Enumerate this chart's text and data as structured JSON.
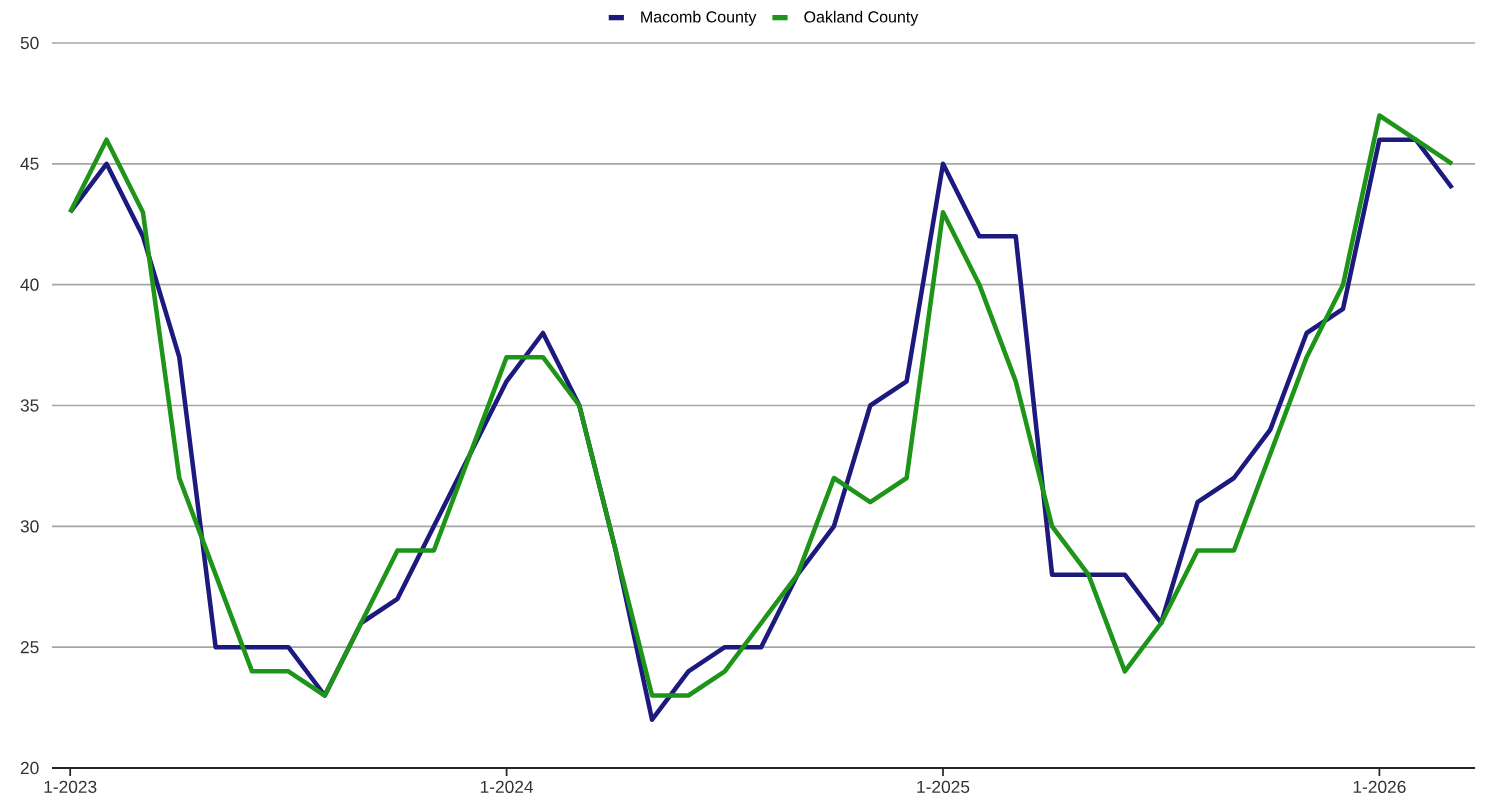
{
  "chart_data": {
    "type": "line",
    "categories": [
      "1-2023",
      null,
      null,
      null,
      null,
      null,
      null,
      null,
      null,
      null,
      null,
      null,
      "1-2024",
      null,
      null,
      null,
      null,
      null,
      null,
      null,
      null,
      null,
      null,
      null,
      "1-2025",
      null,
      null,
      null,
      null,
      null,
      null,
      null,
      null,
      null,
      null,
      null,
      "1-2026",
      null,
      null
    ],
    "series": [
      {
        "name": "Macomb County",
        "color": "#1c1a7e",
        "values": [
          43,
          45,
          42,
          37,
          25,
          25,
          25,
          23,
          26,
          27,
          30,
          33,
          36,
          38,
          35,
          29,
          22,
          24,
          25,
          25,
          28,
          30,
          35,
          36,
          45,
          42,
          42,
          28,
          28,
          28,
          26,
          31,
          32,
          34,
          38,
          39,
          46,
          46,
          44
        ]
      },
      {
        "name": "Oakland County",
        "color": "#1e9418",
        "values": [
          43,
          46,
          43,
          32,
          28,
          24,
          24,
          23,
          26,
          29,
          29,
          33,
          37,
          37,
          35,
          29,
          23,
          23,
          24,
          26,
          28,
          32,
          31,
          32,
          43,
          40,
          36,
          30,
          28,
          24,
          26,
          29,
          29,
          33,
          37,
          40,
          47,
          46,
          45
        ]
      }
    ],
    "ylim": [
      20,
      50
    ],
    "yticks": [
      20,
      25,
      30,
      35,
      40,
      45,
      50
    ],
    "grid": "y",
    "legend": "top",
    "marker": "none",
    "line_style": "solid"
  }
}
